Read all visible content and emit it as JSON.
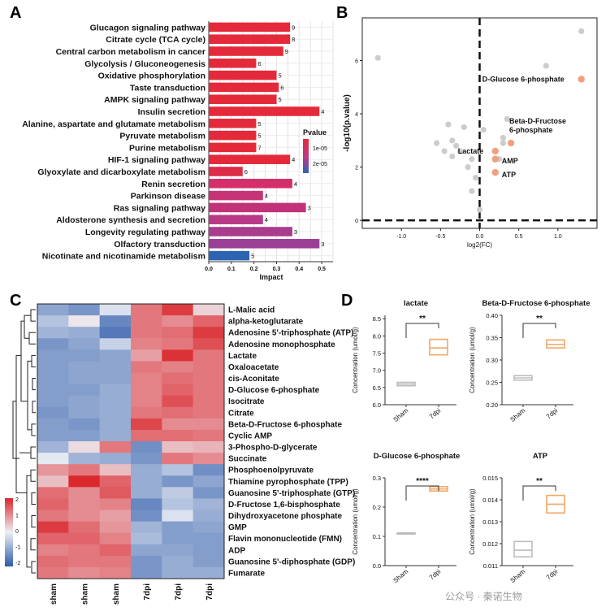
{
  "panel_letters": [
    "A",
    "B",
    "C",
    "D"
  ],
  "watermark": "公众号 · 秦诺生物",
  "chart_data": [
    {
      "panel": "A",
      "type": "bar",
      "orientation": "horizontal",
      "categories": [
        "Glucagon signaling pathway",
        "Citrate cycle (TCA cycle)",
        "Central carbon metabolism in cancer",
        "Glycolysis / Gluconeogenesis",
        "Oxidative phosphorylation",
        "Taste transduction",
        "AMPK signaling pathway",
        "Insulin secretion",
        "Alanine, aspartate and glutamate metabolism",
        "Pyruvate metabolism",
        "Purine metabolism",
        "HIF-1 signaling pathway",
        "Glyoxylate and dicarboxylate metabolism",
        "Renin secretion",
        "Parkinson disease",
        "Ras signaling pathway",
        "Aldosterone synthesis and secretion",
        "Longevity regulating pathway",
        "Olfactory transduction",
        "Nicotinate and nicotinamide metabolism"
      ],
      "values": [
        0.36,
        0.36,
        0.33,
        0.21,
        0.3,
        0.31,
        0.3,
        0.49,
        0.21,
        0.21,
        0.21,
        0.36,
        0.15,
        0.37,
        0.24,
        0.43,
        0.24,
        0.37,
        0.49,
        0.18
      ],
      "counts": [
        "9",
        "8",
        "9",
        "6",
        "5",
        "6",
        "5",
        "4",
        "5",
        "5",
        "7",
        "4",
        "6",
        "4",
        "4",
        "3",
        "4",
        "3",
        "3",
        "5"
      ],
      "colors": [
        "#e42a3a",
        "#e42a3a",
        "#e42a3a",
        "#e42a3a",
        "#e42a3a",
        "#e42a3a",
        "#e42a3a",
        "#e42a3a",
        "#e42a3a",
        "#e42a3a",
        "#e42a3a",
        "#e42a3a",
        "#de2b48",
        "#d42f6a",
        "#c63476",
        "#c13378",
        "#b83a86",
        "#a93c8c",
        "#9a3f95",
        "#2c64b2"
      ],
      "xlabel": "Impact",
      "ylabel": "",
      "xticks": [
        "0.0",
        "0.1",
        "0.2",
        "0.3",
        "0.4",
        "0.5"
      ],
      "xlim": [
        0,
        0.55
      ],
      "legend": {
        "title": "Pvalue",
        "labels": [
          "1e-05",
          "2e-05"
        ],
        "colors": [
          "#e42a3a",
          "#2c64b2"
        ]
      }
    },
    {
      "panel": "B",
      "type": "scatter",
      "xlabel": "log2(FC)",
      "ylabel": "-log10(p.value)",
      "xticks": [
        "-1.0",
        "-0.5",
        "0.0",
        "0.5",
        "1.0"
      ],
      "yticks": [
        "0",
        "2",
        "4",
        "6"
      ],
      "xlim": [
        -1.5,
        1.5
      ],
      "ylim": [
        -0.3,
        7.6
      ],
      "threshold_y": 0,
      "threshold_x": 0,
      "grey_points": [
        [
          -1.3,
          6.1
        ],
        [
          1.3,
          7.1
        ],
        [
          0.85,
          5.8
        ],
        [
          -0.4,
          3.6
        ],
        [
          -0.2,
          3.5
        ],
        [
          -0.55,
          2.9
        ],
        [
          -0.35,
          3.0
        ],
        [
          -0.3,
          2.8
        ],
        [
          -0.25,
          2.6
        ],
        [
          -0.35,
          2.4
        ],
        [
          -0.1,
          2.3
        ],
        [
          -0.15,
          2.0
        ],
        [
          -0.05,
          1.6
        ],
        [
          -0.1,
          1.1
        ],
        [
          0.0,
          0.4
        ],
        [
          0.3,
          3.1
        ],
        [
          0.35,
          3.8
        ],
        [
          0.25,
          2.3
        ],
        [
          0.3,
          2.9
        ],
        [
          -0.45,
          2.6
        ],
        [
          0.05,
          3.4
        ]
      ],
      "highlight_points": [
        {
          "label": "D-Glucose 6-phosphate",
          "x": 1.3,
          "y": 5.3
        },
        {
          "label": "Beta-D-Fructose 6-phosphate",
          "x": 0.4,
          "y": 2.9
        },
        {
          "label": "Lactate",
          "x": 0.2,
          "y": 2.6
        },
        {
          "label": "AMP",
          "x": 0.2,
          "y": 2.3
        },
        {
          "label": "ATP",
          "x": 0.2,
          "y": 1.8
        }
      ],
      "highlight_color": "#f0a07c",
      "grey_color": "#cccccc"
    },
    {
      "panel": "C",
      "type": "heatmap",
      "columns": [
        "sham",
        "sham",
        "sham",
        "7dpi",
        "7dpi",
        "7dpi"
      ],
      "rows": [
        "L-Malic acid",
        "alpha-ketoglutarate",
        "Adenosine 5'-triphosphate (ATP)",
        "Adenosine monophosphate",
        "Lactate",
        "Oxaloacetate",
        "cis-Aconitate",
        "D-Glucose 6-phosphate",
        "Isocitrate",
        "Citrate",
        "Beta-D-Fructose 6-phosphate",
        "Cyclic AMP",
        "3-Phospho-D-glycerate",
        "Succinate",
        "Phosphoenolpyruvate",
        "Thiamine pyrophosphate (TPP)",
        "Guanosine 5'-triphosphate (GTP)",
        "D-Fructose 1,6-bisphosphate",
        "Dihydroxyacetone phosphate",
        "GMP",
        "Flavin mononucleotide (FMN)",
        "ADP",
        "Guanosine 5'-diphosphate (GDP)",
        "Fumarate"
      ],
      "values": [
        [
          -1.0,
          -1.2,
          -0.2,
          1.2,
          1.8,
          0.3
        ],
        [
          -0.6,
          0.1,
          -1.4,
          1.2,
          1.0,
          1.4
        ],
        [
          -0.8,
          -0.9,
          -1.6,
          1.2,
          1.3,
          1.8
        ],
        [
          -1.2,
          -1.0,
          -0.4,
          1.1,
          1.2,
          1.6
        ],
        [
          -1.1,
          -1.1,
          -1.0,
          0.8,
          1.9,
          1.2
        ],
        [
          -1.1,
          -1.0,
          -1.0,
          1.2,
          1.1,
          1.2
        ],
        [
          -1.1,
          -1.0,
          -1.0,
          1.1,
          1.3,
          1.2
        ],
        [
          -1.1,
          -1.1,
          -0.9,
          1.1,
          1.4,
          1.2
        ],
        [
          -1.1,
          -1.0,
          -0.9,
          1.1,
          1.6,
          1.2
        ],
        [
          -1.2,
          -1.0,
          -0.9,
          1.2,
          1.3,
          1.2
        ],
        [
          -1.1,
          -1.2,
          -0.9,
          1.7,
          1.0,
          1.0
        ],
        [
          -1.1,
          -1.1,
          -0.9,
          1.3,
          1.3,
          1.2
        ],
        [
          -0.8,
          0.2,
          1.2,
          -1.3,
          0.5,
          0.6
        ],
        [
          -0.1,
          -0.8,
          -0.9,
          -1.2,
          1.2,
          1.0
        ],
        [
          0.9,
          1.2,
          0.5,
          -0.9,
          -0.6,
          -1.3
        ],
        [
          0.5,
          2.0,
          1.4,
          -0.9,
          -1.2,
          -1.0
        ],
        [
          1.3,
          1.0,
          1.5,
          -0.9,
          -0.5,
          -1.2
        ],
        [
          1.4,
          1.0,
          1.1,
          -1.4,
          -0.6,
          -0.8
        ],
        [
          1.2,
          1.0,
          0.8,
          -1.3,
          -0.2,
          -0.9
        ],
        [
          1.8,
          1.3,
          0.9,
          -0.8,
          -1.1,
          -1.0
        ],
        [
          1.4,
          1.4,
          1.1,
          -0.7,
          -1.1,
          -1.1
        ],
        [
          1.1,
          1.2,
          1.4,
          -1.0,
          -1.0,
          -1.1
        ],
        [
          1.3,
          1.2,
          1.2,
          -1.2,
          -0.9,
          -1.1
        ],
        [
          1.2,
          1.0,
          1.1,
          -1.2,
          -0.9,
          -0.9
        ]
      ],
      "scale": {
        "min": -2,
        "max": 2,
        "ticks": [
          "2",
          "1",
          "0",
          "-1",
          "-2"
        ]
      }
    },
    {
      "panel": "D",
      "type": "box",
      "groups": [
        "Sham",
        "7dpi"
      ],
      "ylabel": "Concentration (umol/g)",
      "colors": {
        "Sham": "#bdbdbd",
        "7dpi": "#f0a868"
      },
      "subplots": [
        {
          "title": "lactate",
          "sig": "**",
          "yticks": [
            "6.0",
            "6.5",
            "7.0",
            "7.5",
            "8.0",
            "8.5"
          ],
          "ylim": [
            6.0,
            8.6
          ],
          "Sham": {
            "q1": 6.55,
            "median": 6.6,
            "q3": 6.65
          },
          "7dpi": {
            "q1": 7.45,
            "median": 7.65,
            "q3": 7.9
          }
        },
        {
          "title": "Beta-D-Fructose 6-phosphate",
          "sig": "**",
          "yticks": [
            "0.20",
            "0.25",
            "0.30",
            "0.35",
            "0.40"
          ],
          "ylim": [
            0.2,
            0.4
          ],
          "Sham": {
            "q1": 0.255,
            "median": 0.26,
            "q3": 0.265
          },
          "7dpi": {
            "q1": 0.327,
            "median": 0.335,
            "q3": 0.345
          }
        },
        {
          "title": "D-Glucose 6-phosphate",
          "sig": "****",
          "yticks": [
            "0.0",
            "0.1",
            "0.2",
            "0.3"
          ],
          "ylim": [
            0.0,
            0.3
          ],
          "Sham": {
            "q1": 0.108,
            "median": 0.11,
            "q3": 0.112
          },
          "7dpi": {
            "q1": 0.255,
            "median": 0.262,
            "q3": 0.27
          }
        },
        {
          "title": "ATP",
          "sig": "**",
          "yticks": [
            "0.011",
            "0.012",
            "0.013",
            "0.014",
            "0.015"
          ],
          "ylim": [
            0.011,
            0.015
          ],
          "Sham": {
            "q1": 0.0114,
            "median": 0.0117,
            "q3": 0.0121
          },
          "7dpi": {
            "q1": 0.0134,
            "median": 0.0138,
            "q3": 0.0142
          }
        }
      ]
    }
  ]
}
